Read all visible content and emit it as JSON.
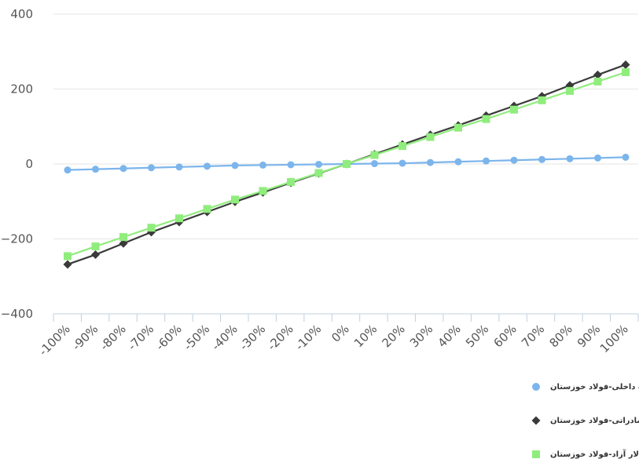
{
  "chart_data": {
    "type": "line",
    "categories": [
      "-100%",
      "-90%",
      "-80%",
      "-70%",
      "-60%",
      "-50%",
      "-40%",
      "-30%",
      "-20%",
      "-10%",
      "0%",
      "10%",
      "20%",
      "30%",
      "40%",
      "50%",
      "60%",
      "70%",
      "80%",
      "90%",
      "100%"
    ],
    "ylim": [
      -400,
      400
    ],
    "yticks": [
      -400,
      -200,
      0,
      200,
      400
    ],
    "grid": true,
    "legend_position": "bottom",
    "series": [
      {
        "name": "نرخ فروش بلوم و بیلت داخلی-فولاد خوزستان",
        "color": "#7cb5ec",
        "marker": "circle",
        "values": [
          -16,
          -14,
          -12,
          -10,
          -8,
          -6,
          -4,
          -3,
          -2,
          -1,
          0,
          1,
          2,
          4,
          6,
          8,
          10,
          12,
          14,
          16,
          18
        ]
      },
      {
        "name": "نرخ محصولات صادراتی-فولاد خوزستان",
        "color": "#3a3a3a",
        "marker": "diamond",
        "values": [
          -268,
          -242,
          -212,
          -182,
          -155,
          -128,
          -101,
          -76,
          -50,
          -25,
          0,
          26,
          52,
          78,
          103,
          129,
          155,
          181,
          210,
          238,
          265
        ]
      },
      {
        "name": "دلار آزاد-فولاد خوزستان",
        "color": "#90ed7d",
        "marker": "square",
        "values": [
          -246,
          -220,
          -195,
          -170,
          -145,
          -120,
          -95,
          -72,
          -48,
          -24,
          0,
          24,
          48,
          72,
          97,
          120,
          145,
          170,
          195,
          220,
          245
        ]
      }
    ]
  }
}
